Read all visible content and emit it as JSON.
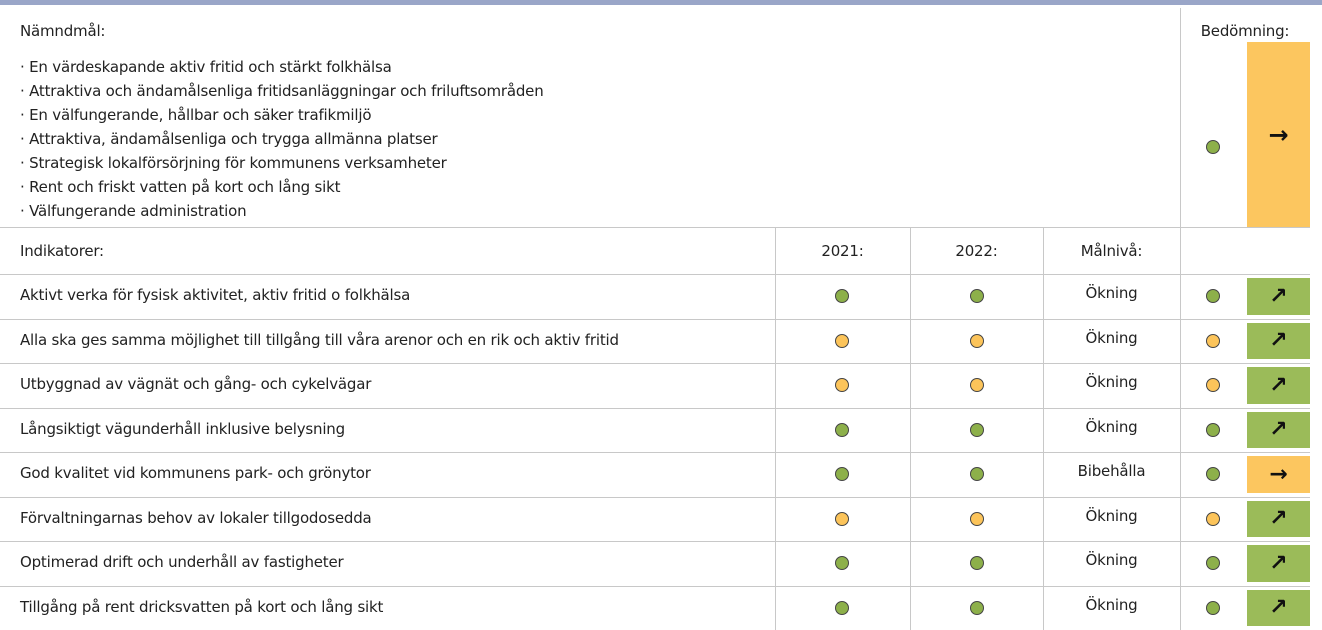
{
  "goals": {
    "label": "Nämndmål:",
    "assessment_label": "Bedömning:",
    "items": [
      "En värdeskapande aktiv fritid och stärkt folkhälsa",
      "Attraktiva och ändamålsenliga fritidsanläggningar och friluftsområden",
      "En välfungerande, hållbar och säker trafikmiljö",
      "Attraktiva, ändamålsenliga och trygga allmänna platser",
      "Strategisk lokalförsörjning för kommunens verksamheter",
      "Rent och friskt vatten på kort och lång sikt",
      "Välfungerande administration"
    ],
    "status_color": "#8db04a",
    "trend": "→",
    "trend_color": "#fcc65f"
  },
  "indicators": {
    "header": [
      "Indikatorer:",
      "2021:",
      "2022:",
      "Målnivå:"
    ],
    "rows": [
      {
        "name": "Aktivt verka för fysisk aktivitet, aktiv fritid o folkhälsa",
        "color_2021": "#8db04a",
        "color_2022": "#8db04a",
        "target": "Ökning",
        "status_color": "#8db04a",
        "trend": "↗",
        "trend_color": "#9bbb59"
      },
      {
        "name": "Alla ska ges samma möjlighet till tillgång till våra arenor och en rik och aktiv fritid",
        "color_2021": "#fcc45a",
        "color_2022": "#fcc45a",
        "target": "Ökning",
        "status_color": "#fcc45a",
        "trend": "↗",
        "trend_color": "#9bbb59"
      },
      {
        "name": "Utbyggnad av vägnät och gång- och cykelvägar",
        "color_2021": "#fcc45a",
        "color_2022": "#fcc45a",
        "target": "Ökning",
        "status_color": "#fcc45a",
        "trend": "↗",
        "trend_color": "#9bbb59"
      },
      {
        "name": "Långsiktigt vägunderhåll inklusive belysning",
        "color_2021": "#8db04a",
        "color_2022": "#8db04a",
        "target": "Ökning",
        "status_color": "#8db04a",
        "trend": "↗",
        "trend_color": "#9bbb59"
      },
      {
        "name": "God kvalitet vid kommunens park- och grönytor",
        "color_2021": "#8db04a",
        "color_2022": "#8db04a",
        "target": "Bibehålla",
        "status_color": "#8db04a",
        "trend": "→",
        "trend_color": "#fcc65f"
      },
      {
        "name": "Förvaltningarnas behov av lokaler tillgodosedda",
        "color_2021": "#fcc45a",
        "color_2022": "#fcc45a",
        "target": "Ökning",
        "status_color": "#fcc45a",
        "trend": "↗",
        "trend_color": "#9bbb59"
      },
      {
        "name": "Optimerad drift och underhåll av fastigheter",
        "color_2021": "#8db04a",
        "color_2022": "#8db04a",
        "target": "Ökning",
        "status_color": "#8db04a",
        "trend": "↗",
        "trend_color": "#9bbb59"
      },
      {
        "name": "Tillgång på rent dricksvatten på kort och lång sikt",
        "color_2021": "#8db04a",
        "color_2022": "#8db04a",
        "target": "Ökning",
        "status_color": "#8db04a",
        "trend": "↗",
        "trend_color": "#9bbb59"
      }
    ]
  }
}
